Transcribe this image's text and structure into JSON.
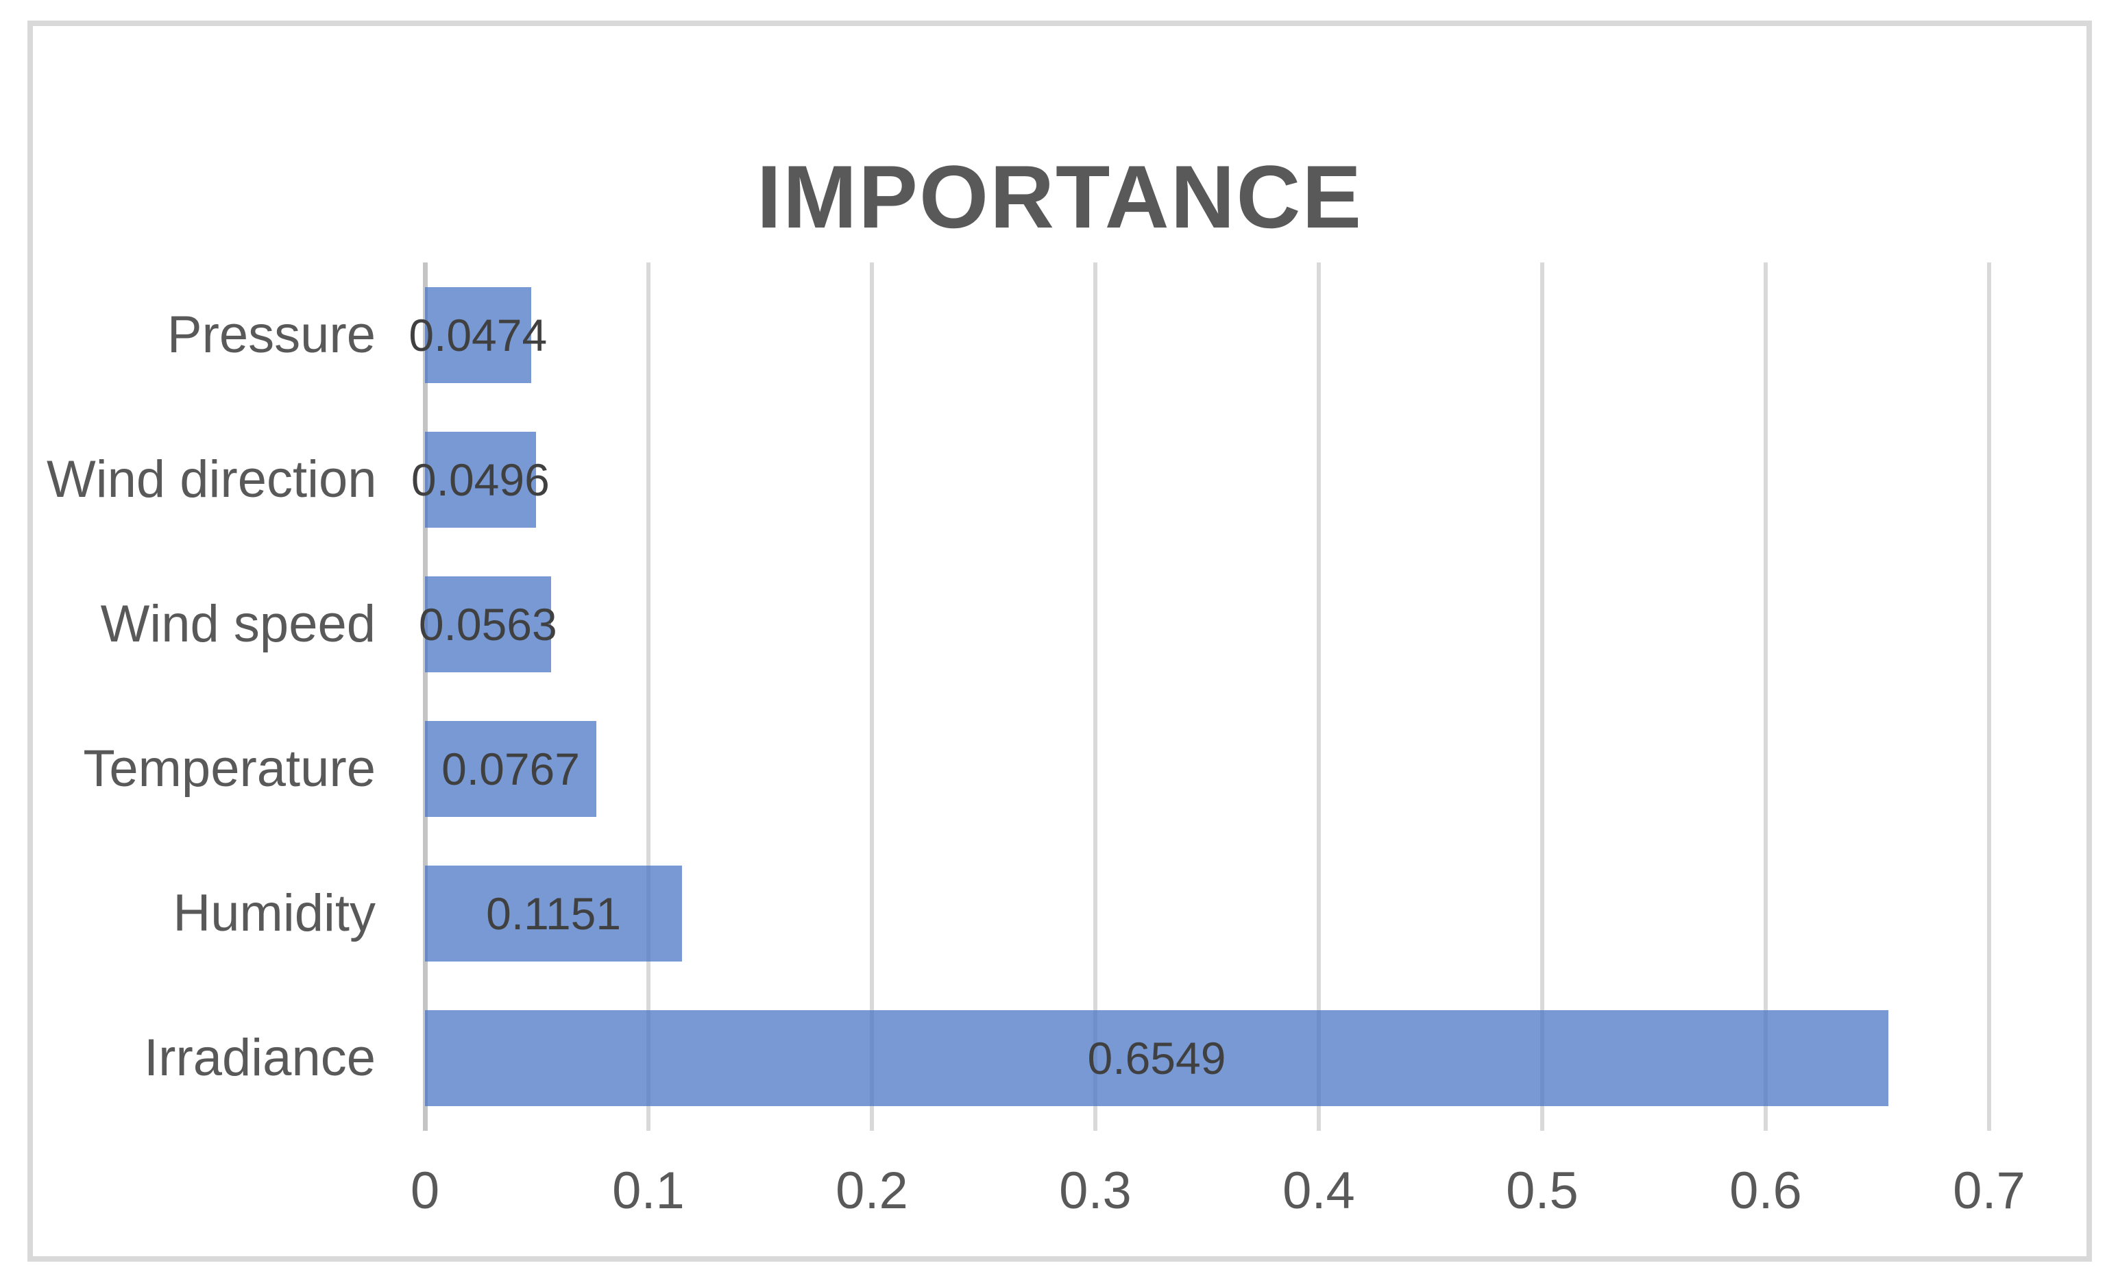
{
  "chart_data": {
    "type": "bar",
    "orientation": "horizontal",
    "title": "IMPORTANCE",
    "categories": [
      "Pressure",
      "Wind direction",
      "Wind speed",
      "Temperature",
      "Humidity",
      "Irradiance"
    ],
    "values": [
      0.0474,
      0.0496,
      0.0563,
      0.0767,
      0.1151,
      0.6549
    ],
    "value_labels": [
      "0.0474",
      "0.0496",
      "0.0563",
      "0.0767",
      "0.1151",
      "0.6549"
    ],
    "x_ticks": [
      0,
      0.1,
      0.2,
      0.3,
      0.4,
      0.5,
      0.6,
      0.7
    ],
    "x_tick_labels": [
      "0",
      "0.1",
      "0.2",
      "0.3",
      "0.4",
      "0.5",
      "0.6",
      "0.7"
    ],
    "xlim": [
      0,
      0.7
    ],
    "grid": true,
    "legend": "none",
    "xlabel": "",
    "ylabel": ""
  },
  "colors": {
    "bar_fill": "#4472C4",
    "bar_opacity": 0.72,
    "gridline": "#D9D9D9",
    "axis_line": "#C4C4C4",
    "title_text": "#595959",
    "axis_text": "#595959",
    "data_label_text": "#404040",
    "frame_border": "#D9D9D9",
    "background": "#FFFFFF"
  }
}
